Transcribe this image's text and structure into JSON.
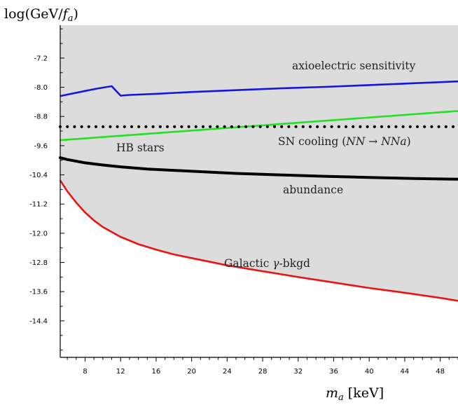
{
  "chart_data": {
    "type": "line",
    "title": "",
    "ylabel": "log(GeV/",
    "ylabel_sub": "a",
    "ylabel_var": "f",
    "ylabel_close": ")",
    "xlabel_var": "m",
    "xlabel_sub": "a",
    "xlabel_unit": "[keV]",
    "xlim": [
      5.2,
      50
    ],
    "ylim": [
      -15.4,
      -6.3
    ],
    "x_tick_values": [
      8,
      12,
      16,
      20,
      24,
      28,
      32,
      36,
      40,
      44,
      48
    ],
    "x_tick_labels": [
      "8",
      "12",
      "16",
      "20",
      "24",
      "28",
      "32",
      "36",
      "40",
      "44",
      "48"
    ],
    "y_tick_values": [
      -7.2,
      -8.0,
      -8.8,
      -9.6,
      -10.4,
      -11.2,
      -12.0,
      -12.8,
      -13.6,
      -14.4
    ],
    "y_tick_labels": [
      "-7.2",
      "-8.0",
      "-8.8",
      "-9.6",
      "-10.4",
      "-11.2",
      "-12.0",
      "-12.8",
      "-13.6",
      "-14.4"
    ],
    "grid": false,
    "shaded_region": {
      "color": "#dcdcdc",
      "description_lower_boundary": "Galactic γ-bkgd"
    },
    "series": [
      {
        "name": "axioelectric sensitivity",
        "color": "#1515e0",
        "style": "solid",
        "x": [
          5.2,
          6,
          8,
          9.5,
          11,
          12,
          13,
          16,
          20,
          25,
          30,
          35,
          40,
          45,
          50
        ],
        "y": [
          -8.24,
          -8.2,
          -8.1,
          -8.03,
          -7.97,
          -8.23,
          -8.21,
          -8.18,
          -8.13,
          -8.08,
          -8.03,
          -7.99,
          -7.94,
          -7.89,
          -7.84
        ]
      },
      {
        "name": "HB stars",
        "color": "#22e022",
        "style": "solid",
        "x": [
          5.2,
          50
        ],
        "y": [
          -9.45,
          -8.65
        ]
      },
      {
        "name": "SN cooling (NN → NNa)",
        "color": "#000000",
        "style": "dotted",
        "x": [
          5.2,
          50
        ],
        "y": [
          -9.08,
          -9.08
        ]
      },
      {
        "name": "abundance",
        "color": "#000000",
        "style": "solid-thick",
        "x": [
          5.2,
          6,
          8,
          10,
          12,
          15,
          20,
          25,
          30,
          35,
          40,
          45,
          50
        ],
        "y": [
          -9.93,
          -9.98,
          -10.07,
          -10.13,
          -10.18,
          -10.24,
          -10.3,
          -10.36,
          -10.4,
          -10.44,
          -10.47,
          -10.5,
          -10.52
        ]
      },
      {
        "name": "Galactic γ-bkgd",
        "color": "#ee1111",
        "style": "solid",
        "x": [
          5.2,
          6,
          7,
          8,
          9,
          10,
          12,
          14,
          16,
          18,
          20,
          24,
          28,
          32,
          36,
          40,
          44,
          48,
          50
        ],
        "y": [
          -10.55,
          -10.85,
          -11.16,
          -11.43,
          -11.65,
          -11.83,
          -12.1,
          -12.3,
          -12.45,
          -12.58,
          -12.68,
          -12.88,
          -13.04,
          -13.2,
          -13.35,
          -13.5,
          -13.63,
          -13.77,
          -13.85
        ]
      }
    ],
    "annotations": {
      "axio": "axioelectric sensitivity",
      "sn": "SN cooling (",
      "sn_expr_l": "NN",
      "sn_arrow": " → ",
      "sn_expr_r": "NNa",
      "sn_close": ")",
      "hb": "HB stars",
      "abundance": "abundance",
      "galactic_pre": "Galactic ",
      "galactic_gamma": "γ",
      "galactic_post": "-bkgd"
    }
  }
}
